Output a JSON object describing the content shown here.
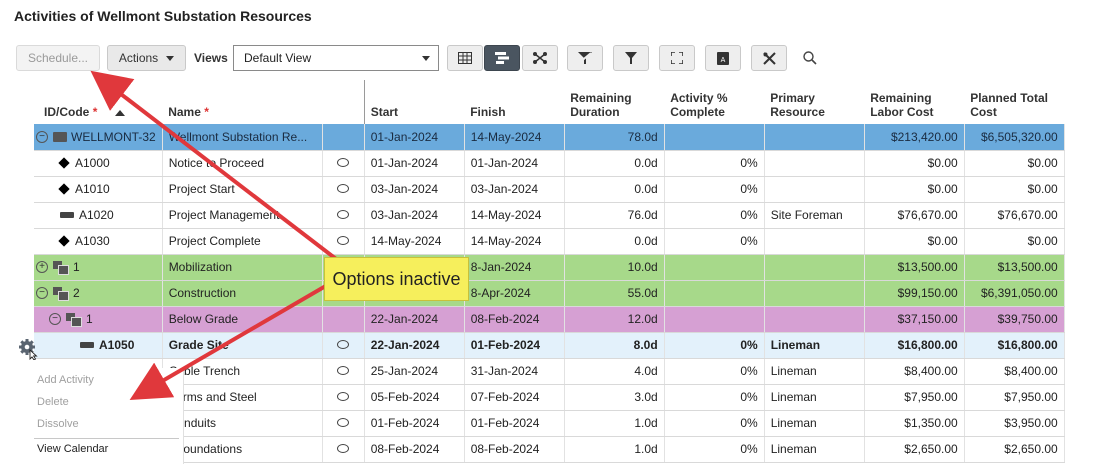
{
  "page": {
    "title": "Activities of Wellmont Substation Resources"
  },
  "toolbar": {
    "schedule_label": "Schedule...",
    "actions_label": "Actions",
    "views_label": "Views",
    "view_value": "Default View",
    "icons": [
      "table-view-icon",
      "gantt-view-icon",
      "network-view-icon",
      "filter-clear-icon",
      "filter-icon",
      "expand-icon",
      "pdf-export-icon",
      "tools-icon",
      "search-icon"
    ]
  },
  "columns": {
    "id": "ID/Code",
    "id_req": "*",
    "name": "Name",
    "name_req": "*",
    "start": "Start",
    "finish": "Finish",
    "rem_dur_1": "Remaining",
    "rem_dur_2": "Duration",
    "act_pct_1": "Activity %",
    "act_pct_2": "Complete",
    "prim_res_1": "Primary",
    "prim_res_2": "Resource",
    "rem_labor_1": "Remaining",
    "rem_labor_2": "Labor Cost",
    "plan_total_1": "Planned Total",
    "plan_total_2": "Cost"
  },
  "rows": [
    {
      "id": "WELLMONT-32",
      "name": "Wellmont Substation Re...",
      "start": "01-Jan-2024",
      "finish": "14-May-2024",
      "rem_dur": "78.0d",
      "pct": "",
      "resource": "",
      "labor": "$213,420.00",
      "total": "$6,505,320.00"
    },
    {
      "id": "A1000",
      "name": "Notice to Proceed",
      "start": "01-Jan-2024",
      "finish": "01-Jan-2024",
      "rem_dur": "0.0d",
      "pct": "0%",
      "resource": "",
      "labor": "$0.00",
      "total": "$0.00"
    },
    {
      "id": "A1010",
      "name": "Project Start",
      "start": "03-Jan-2024",
      "finish": "03-Jan-2024",
      "rem_dur": "0.0d",
      "pct": "0%",
      "resource": "",
      "labor": "$0.00",
      "total": "$0.00"
    },
    {
      "id": "A1020",
      "name": "Project Management",
      "start": "03-Jan-2024",
      "finish": "14-May-2024",
      "rem_dur": "76.0d",
      "pct": "0%",
      "resource": "Site Foreman",
      "labor": "$76,670.00",
      "total": "$76,670.00"
    },
    {
      "id": "A1030",
      "name": "Project Complete",
      "start": "14-May-2024",
      "finish": "14-May-2024",
      "rem_dur": "0.0d",
      "pct": "0%",
      "resource": "",
      "labor": "$0.00",
      "total": "$0.00"
    },
    {
      "id": "1",
      "name": "Mobilization",
      "start": "",
      "finish": "8-Jan-2024",
      "rem_dur": "10.0d",
      "pct": "",
      "resource": "",
      "labor": "$13,500.00",
      "total": "$13,500.00"
    },
    {
      "id": "2",
      "name": "Construction",
      "start": "",
      "finish": "8-Apr-2024",
      "rem_dur": "55.0d",
      "pct": "",
      "resource": "",
      "labor": "$99,150.00",
      "total": "$6,391,050.00"
    },
    {
      "id": "1",
      "name": "Below Grade",
      "start": "22-Jan-2024",
      "finish": "08-Feb-2024",
      "rem_dur": "12.0d",
      "pct": "",
      "resource": "",
      "labor": "$37,150.00",
      "total": "$39,750.00"
    },
    {
      "id": "A1050",
      "name": "Grade Site",
      "start": "22-Jan-2024",
      "finish": "01-Feb-2024",
      "rem_dur": "8.0d",
      "pct": "0%",
      "resource": "Lineman",
      "labor": "$16,800.00",
      "total": "$16,800.00"
    },
    {
      "id": "",
      "name": "Cable Trench",
      "start": "25-Jan-2024",
      "finish": "31-Jan-2024",
      "rem_dur": "4.0d",
      "pct": "0%",
      "resource": "Lineman",
      "labor": "$8,400.00",
      "total": "$8,400.00"
    },
    {
      "id": "",
      "name": "Forms and Steel",
      "start": "05-Feb-2024",
      "finish": "07-Feb-2024",
      "rem_dur": "3.0d",
      "pct": "0%",
      "resource": "Lineman",
      "labor": "$7,950.00",
      "total": "$7,950.00"
    },
    {
      "id": "",
      "name": "Conduits",
      "start": "01-Feb-2024",
      "finish": "01-Feb-2024",
      "rem_dur": "1.0d",
      "pct": "0%",
      "resource": "Lineman",
      "labor": "$1,350.00",
      "total": "$3,950.00"
    },
    {
      "id": "",
      "name": "r Foundations",
      "start": "08-Feb-2024",
      "finish": "08-Feb-2024",
      "rem_dur": "1.0d",
      "pct": "0%",
      "resource": "Lineman",
      "labor": "$2,650.00",
      "total": "$2,650.00"
    }
  ],
  "context_menu": {
    "add_activity": "Add Activity",
    "delete": "Delete",
    "dissolve": "Dissolve",
    "view_calendar": "View Calendar"
  },
  "callout": {
    "text": "Options inactive"
  },
  "colors": {
    "wbs_blue": "#6aaadc",
    "wbs_green": "#a7d98a",
    "wbs_purple": "#d6a0d3",
    "selected": "#e3f1fb",
    "arrow_red": "#e0383c",
    "callout_yellow": "#f6ef5c"
  }
}
